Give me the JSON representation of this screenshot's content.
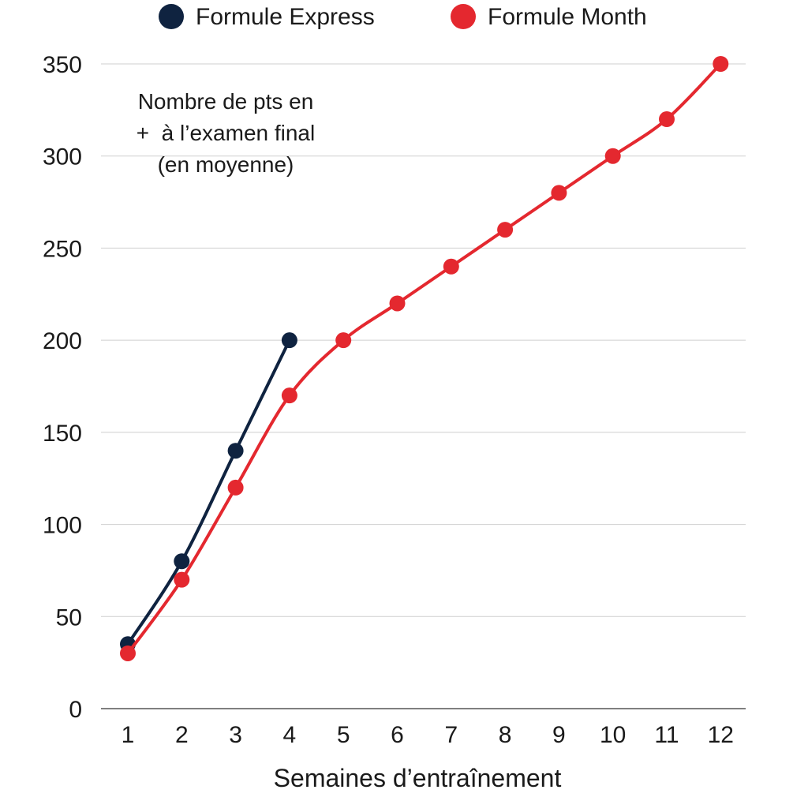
{
  "chart_data": {
    "type": "line",
    "x": [
      1,
      2,
      3,
      4,
      5,
      6,
      7,
      8,
      9,
      10,
      11,
      12
    ],
    "xticks": [
      "1",
      "2",
      "3",
      "4",
      "5",
      "6",
      "7",
      "8",
      "9",
      "10",
      "11",
      "12"
    ],
    "yticks": [
      "0",
      "50",
      "100",
      "150",
      "200",
      "250",
      "300",
      "350"
    ],
    "ylim": [
      0,
      350
    ],
    "grid": true,
    "legend_position": "top",
    "xlabel": "Semaines d’entraînement",
    "annotation": [
      "Nombre de pts en",
      "+  à l’examen final",
      "(en moyenne)"
    ],
    "series": [
      {
        "name": "Formule Express",
        "color": "#0f2340",
        "x": [
          1,
          2,
          3,
          4
        ],
        "values": [
          35,
          80,
          140,
          200
        ]
      },
      {
        "name": "Formule Month",
        "color": "#e4282f",
        "x": [
          1,
          2,
          3,
          4,
          5,
          6,
          7,
          8,
          9,
          10,
          11,
          12
        ],
        "values": [
          30,
          70,
          120,
          170,
          200,
          220,
          240,
          260,
          280,
          300,
          320,
          350
        ]
      }
    ]
  }
}
